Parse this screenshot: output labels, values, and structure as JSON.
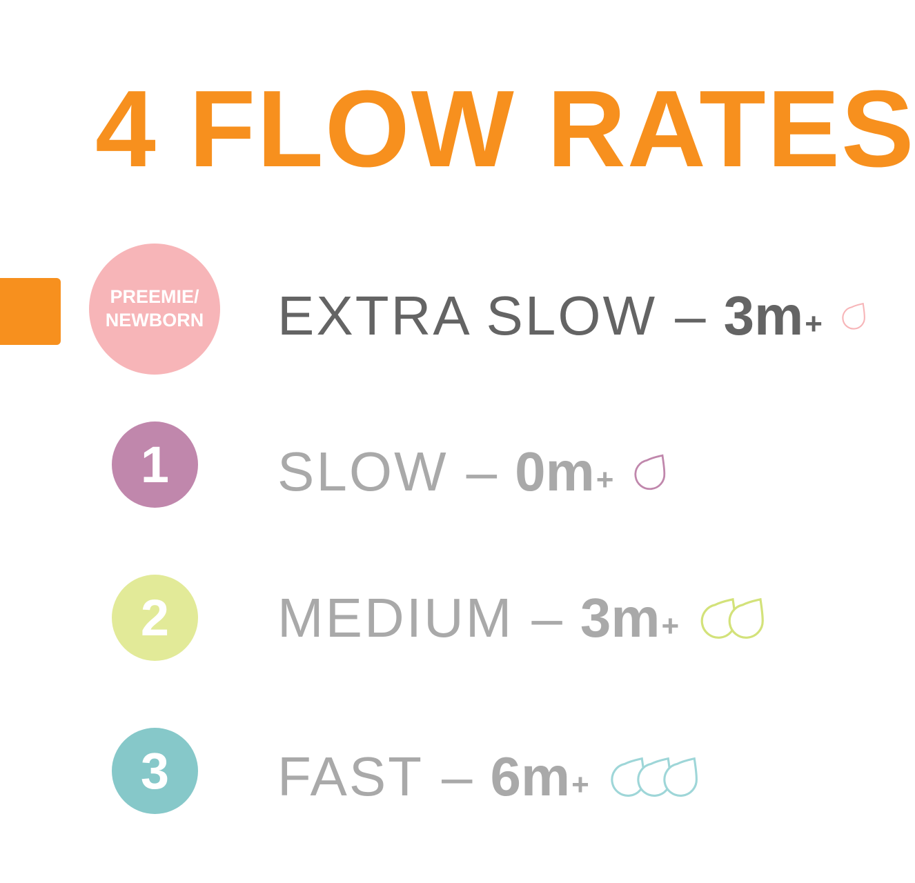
{
  "title": "4 FLOW RATES",
  "colors": {
    "accent": "#F7901E",
    "active_text": "#646464",
    "inactive_text": "#A9A9A9"
  },
  "rows": [
    {
      "badge": "PREEMIE/\nNEWBORN",
      "badge_line1": "PREEMIE/",
      "badge_line2": "NEWBORN",
      "name": "EXTRA SLOW",
      "dash": "–",
      "age": "3m",
      "plus": "+",
      "drops": 1,
      "color": "#F7B5B8",
      "drop_icon": "drop-outline-icon",
      "selected": true
    },
    {
      "badge": "1",
      "name": "SLOW",
      "dash": "–",
      "age": "0m",
      "plus": "+",
      "drops": 1,
      "color": "#C087AC",
      "drop_icon": "drop-outline-icon"
    },
    {
      "badge": "2",
      "name": "MEDIUM",
      "dash": "–",
      "age": "3m",
      "plus": "+",
      "drops": 2,
      "color": "#D3E27A",
      "drop_icon": "drop-outline-icon"
    },
    {
      "badge": "3",
      "name": "FAST",
      "dash": "–",
      "age": "6m",
      "plus": "+",
      "drops": 3,
      "color": "#9ED6D8",
      "drop_icon": "drop-outline-icon"
    }
  ]
}
